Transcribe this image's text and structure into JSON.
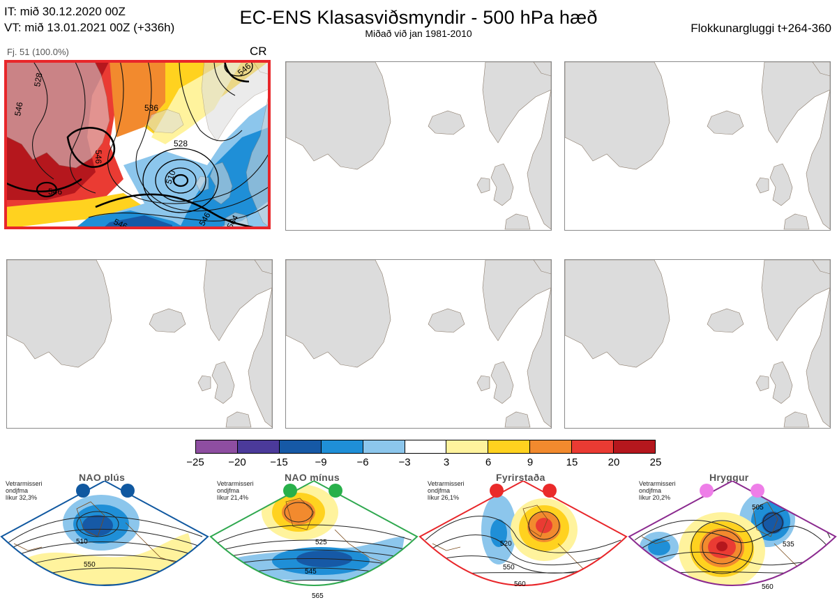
{
  "header": {
    "init_time": "IT: mið 30.12.2020 00Z",
    "valid_time": "VT: mið 13.01.2021 00Z  (+336h)",
    "title": "EC-ENS Klasasviðsmyndir - 500 hPa hæð",
    "subtitle": "Miðað við jan 1981-2010",
    "window": "Flokkunargluggi t+264-360"
  },
  "panels": [
    {
      "cluster_label": "Fj. 51 (100.0%)",
      "regime_code": "CR",
      "selected": true,
      "contour_labels": [
        "528",
        "536",
        "546",
        "510",
        "528",
        "546",
        "546",
        "546",
        "564",
        "546",
        "546"
      ]
    },
    {
      "cluster_label": "",
      "regime_code": "",
      "selected": false
    },
    {
      "cluster_label": "",
      "regime_code": "",
      "selected": false
    },
    {
      "cluster_label": "",
      "regime_code": "",
      "selected": false
    },
    {
      "cluster_label": "",
      "regime_code": "",
      "selected": false
    },
    {
      "cluster_label": "",
      "regime_code": "",
      "selected": false
    }
  ],
  "colorbar": {
    "ticks": [
      "−25",
      "−20",
      "−15",
      "−9",
      "−6",
      "−3",
      "3",
      "6",
      "9",
      "15",
      "20",
      "25"
    ],
    "colors": [
      "#8e4ea1",
      "#4b3a9a",
      "#1659a6",
      "#1f8fd7",
      "#8cc6ec",
      "#ffffff",
      "#fff39d",
      "#ffd21f",
      "#f28a2e",
      "#ea3b33",
      "#b5171d"
    ]
  },
  "regimes": [
    {
      "name": "NAO plús",
      "note": [
        "Vetrarmisseri",
        "ondjfma",
        "líkur 32,3%"
      ],
      "color": "#1058a0",
      "dot_color": "#1058a0",
      "labels": [
        "510",
        "550"
      ]
    },
    {
      "name": "NAO mínus",
      "note": [
        "Vetrarmisseri",
        "ondjfma",
        "líkur 21,4%"
      ],
      "color": "#2fa84f",
      "dot_color": "#28b04a",
      "labels": [
        "525",
        "545",
        "565"
      ]
    },
    {
      "name": "Fyrirstaða",
      "note": [
        "Vetrarmisseri",
        "ondjfma",
        "líkur 26,1%"
      ],
      "color": "#e8262a",
      "dot_color": "#ea2a2a",
      "labels": [
        "520",
        "550",
        "560"
      ]
    },
    {
      "name": "Hryggur",
      "note": [
        "Vetrarmisseri",
        "ondjfma",
        "líkur 20,2%"
      ],
      "color": "#8b2a8f",
      "dot_color": "#ee7ee8",
      "labels": [
        "505",
        "535",
        "560"
      ]
    }
  ]
}
